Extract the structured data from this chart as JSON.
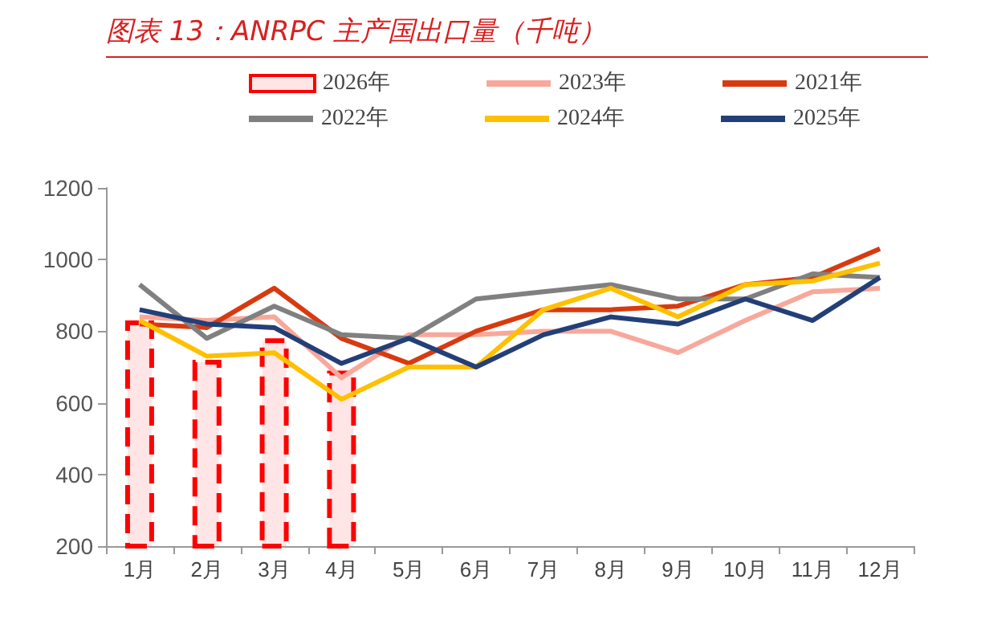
{
  "chart_data": {
    "type": "line",
    "title": "图表 13：ANRPC 主产国出口量（千吨）",
    "categories": [
      "1月",
      "2月",
      "3月",
      "4月",
      "5月",
      "6月",
      "7月",
      "8月",
      "9月",
      "10月",
      "11月",
      "12月"
    ],
    "series": [
      {
        "name": "2026年",
        "type": "bar",
        "color": "#ff0000",
        "values": [
          830,
          720,
          780,
          690,
          null,
          null,
          null,
          null,
          null,
          null,
          null,
          null
        ]
      },
      {
        "name": "2023年",
        "color": "#f8a89a",
        "values": [
          840,
          830,
          840,
          670,
          790,
          790,
          800,
          800,
          740,
          830,
          910,
          920
        ]
      },
      {
        "name": "2021年",
        "color": "#d83a10",
        "values": [
          820,
          810,
          920,
          780,
          710,
          800,
          860,
          860,
          870,
          930,
          950,
          1030
        ]
      },
      {
        "name": "2022年",
        "color": "#808080",
        "values": [
          930,
          780,
          870,
          790,
          780,
          890,
          910,
          930,
          890,
          890,
          960,
          950
        ]
      },
      {
        "name": "2024年",
        "color": "#ffc000",
        "values": [
          830,
          730,
          740,
          610,
          700,
          700,
          860,
          920,
          840,
          930,
          940,
          990
        ]
      },
      {
        "name": "2025年",
        "color": "#233f78",
        "values": [
          860,
          820,
          810,
          710,
          780,
          700,
          790,
          840,
          820,
          890,
          830,
          950
        ]
      }
    ],
    "ylim": [
      200,
      1200
    ],
    "yticks": [
      200,
      400,
      600,
      800,
      1000,
      1200
    ],
    "grid": false,
    "legend": "top",
    "marker": "none",
    "line_style": "solid"
  }
}
